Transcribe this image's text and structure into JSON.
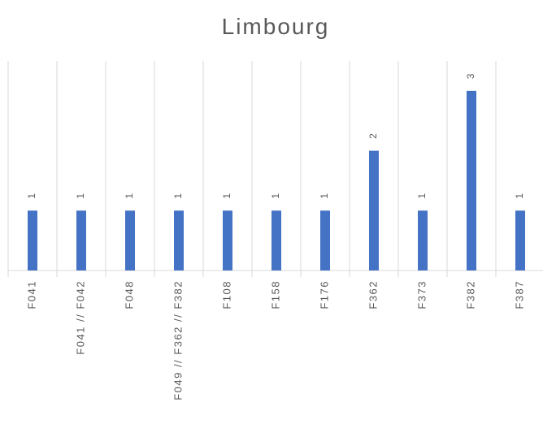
{
  "chart_data": {
    "type": "bar",
    "title": "Limbourg",
    "categories": [
      "F041",
      "F041 // F042",
      "F048",
      "F049 // F362 // F382",
      "F108",
      "F158",
      "F176",
      "F362",
      "F373",
      "F382",
      "F387"
    ],
    "values": [
      1,
      1,
      1,
      1,
      1,
      1,
      1,
      2,
      1,
      3,
      1
    ],
    "color": "#4472c4",
    "ylim": [
      0,
      3.5
    ],
    "grid": true
  }
}
